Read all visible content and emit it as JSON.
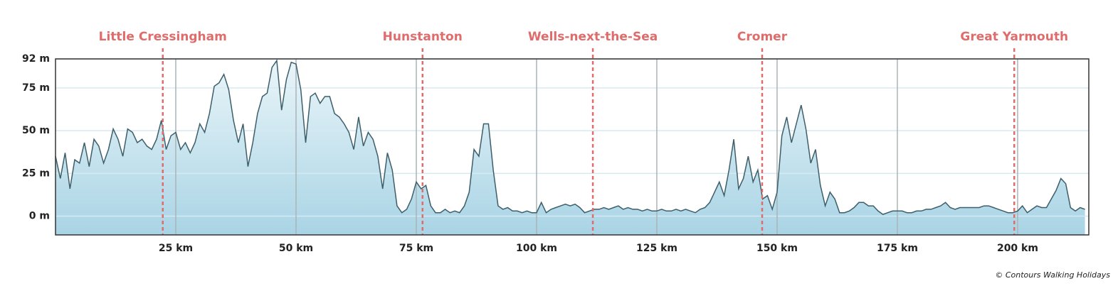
{
  "chart_data": {
    "type": "area",
    "credit": "© Contours Walking Holidays",
    "line_color": "#3d5f6a",
    "fill_top": "#eaf5f9",
    "fill_bottom": "#a9d4e5",
    "marker_color": "#e06b6b",
    "xlim": [
      0,
      214.8
    ],
    "ylim": [
      -11,
      92
    ],
    "xticks": [
      {
        "value": 25,
        "label": "25 km"
      },
      {
        "value": 50,
        "label": "50 km"
      },
      {
        "value": 75,
        "label": "75 km"
      },
      {
        "value": 100,
        "label": "100 km"
      },
      {
        "value": 125,
        "label": "125 km"
      },
      {
        "value": 150,
        "label": "150 km"
      },
      {
        "value": 175,
        "label": "175 km"
      },
      {
        "value": 200,
        "label": "200 km"
      }
    ],
    "yticks": [
      {
        "value": 0,
        "label": "0 m"
      },
      {
        "value": 25,
        "label": "25 m"
      },
      {
        "value": 50,
        "label": "50 m"
      },
      {
        "value": 75,
        "label": "75 m"
      },
      {
        "value": 92,
        "label": "92 m"
      }
    ],
    "markers": [
      {
        "label": "Little Cressingham",
        "x": 22.3
      },
      {
        "label": "Hunstanton",
        "x": 76.3
      },
      {
        "label": "Wells-next-the-Sea",
        "x": 111.7
      },
      {
        "label": "Cromer",
        "x": 146.9
      },
      {
        "label": "Great Yarmouth",
        "x": 199.3
      }
    ],
    "x": [
      0,
      1,
      2,
      3,
      4,
      5,
      6,
      7,
      8,
      9,
      10,
      11,
      12,
      13,
      14,
      15,
      16,
      17,
      18,
      19,
      20,
      21,
      22,
      23,
      24,
      25,
      26,
      27,
      28,
      29,
      30,
      31,
      32,
      33,
      34,
      35,
      36,
      37,
      38,
      39,
      40,
      41,
      42,
      43,
      44,
      45,
      46,
      47,
      48,
      49,
      50,
      51,
      52,
      53,
      54,
      55,
      56,
      57,
      58,
      59,
      60,
      61,
      62,
      63,
      64,
      65,
      66,
      67,
      68,
      69,
      70,
      71,
      72,
      73,
      74,
      75,
      76,
      77,
      78,
      79,
      80,
      81,
      82,
      83,
      84,
      85,
      86,
      87,
      88,
      89,
      90,
      91,
      92,
      93,
      94,
      95,
      96,
      97,
      98,
      99,
      100,
      101,
      102,
      103,
      104,
      105,
      106,
      107,
      108,
      109,
      110,
      111,
      112,
      113,
      114,
      115,
      116,
      117,
      118,
      119,
      120,
      121,
      122,
      123,
      124,
      125,
      126,
      127,
      128,
      129,
      130,
      131,
      132,
      133,
      134,
      135,
      136,
      137,
      138,
      139,
      140,
      141,
      142,
      143,
      144,
      145,
      146,
      147,
      148,
      149,
      150,
      151,
      152,
      153,
      154,
      155,
      156,
      157,
      158,
      159,
      160,
      161,
      162,
      163,
      164,
      165,
      166,
      167,
      168,
      169,
      170,
      171,
      172,
      173,
      174,
      175,
      176,
      177,
      178,
      179,
      180,
      181,
      182,
      183,
      184,
      185,
      186,
      187,
      188,
      189,
      190,
      191,
      192,
      193,
      194,
      195,
      196,
      197,
      198,
      199,
      200,
      201,
      202,
      203,
      204,
      205,
      206,
      207,
      208,
      209,
      210,
      211,
      212,
      213,
      214
    ],
    "values": [
      35,
      22,
      37,
      16,
      33,
      31,
      43,
      29,
      45,
      41,
      31,
      39,
      51,
      45,
      35,
      51,
      49,
      43,
      45,
      41,
      39,
      45,
      56,
      39,
      47,
      49,
      39,
      43,
      37,
      43,
      54,
      49,
      60,
      76,
      78,
      83,
      74,
      56,
      43,
      54,
      29,
      43,
      60,
      70,
      72,
      87,
      91,
      62,
      80,
      90,
      89,
      74,
      43,
      70,
      72,
      66,
      70,
      70,
      60,
      58,
      54,
      49,
      39,
      58,
      41,
      49,
      45,
      35,
      16,
      37,
      27,
      6,
      2,
      4,
      10,
      20,
      16,
      18,
      6,
      2,
      2,
      4,
      2,
      3,
      2,
      6,
      14,
      39,
      35,
      54,
      54,
      27,
      6,
      4,
      5,
      3,
      3,
      2,
      3,
      2,
      2,
      8,
      2,
      4,
      5,
      6,
      7,
      6,
      7,
      5,
      2,
      3,
      4,
      4,
      5,
      4,
      5,
      6,
      4,
      5,
      4,
      4,
      3,
      4,
      3,
      3,
      4,
      3,
      3,
      4,
      3,
      4,
      3,
      2,
      4,
      5,
      8,
      14,
      20,
      12,
      27,
      45,
      16,
      22,
      35,
      20,
      27,
      10,
      12,
      4,
      14,
      47,
      58,
      43,
      54,
      65,
      51,
      31,
      39,
      18,
      6,
      14,
      10,
      2,
      2,
      3,
      5,
      8,
      8,
      6,
      6,
      3,
      1,
      2,
      3,
      3,
      3,
      2,
      2,
      3,
      3,
      4,
      4,
      5,
      6,
      8,
      5,
      4,
      5,
      5,
      5,
      5,
      5,
      6,
      6,
      5,
      4,
      3,
      2,
      2,
      3,
      6,
      2,
      4,
      6,
      5,
      5,
      10,
      15,
      22,
      19,
      5,
      3,
      5,
      4
    ]
  }
}
